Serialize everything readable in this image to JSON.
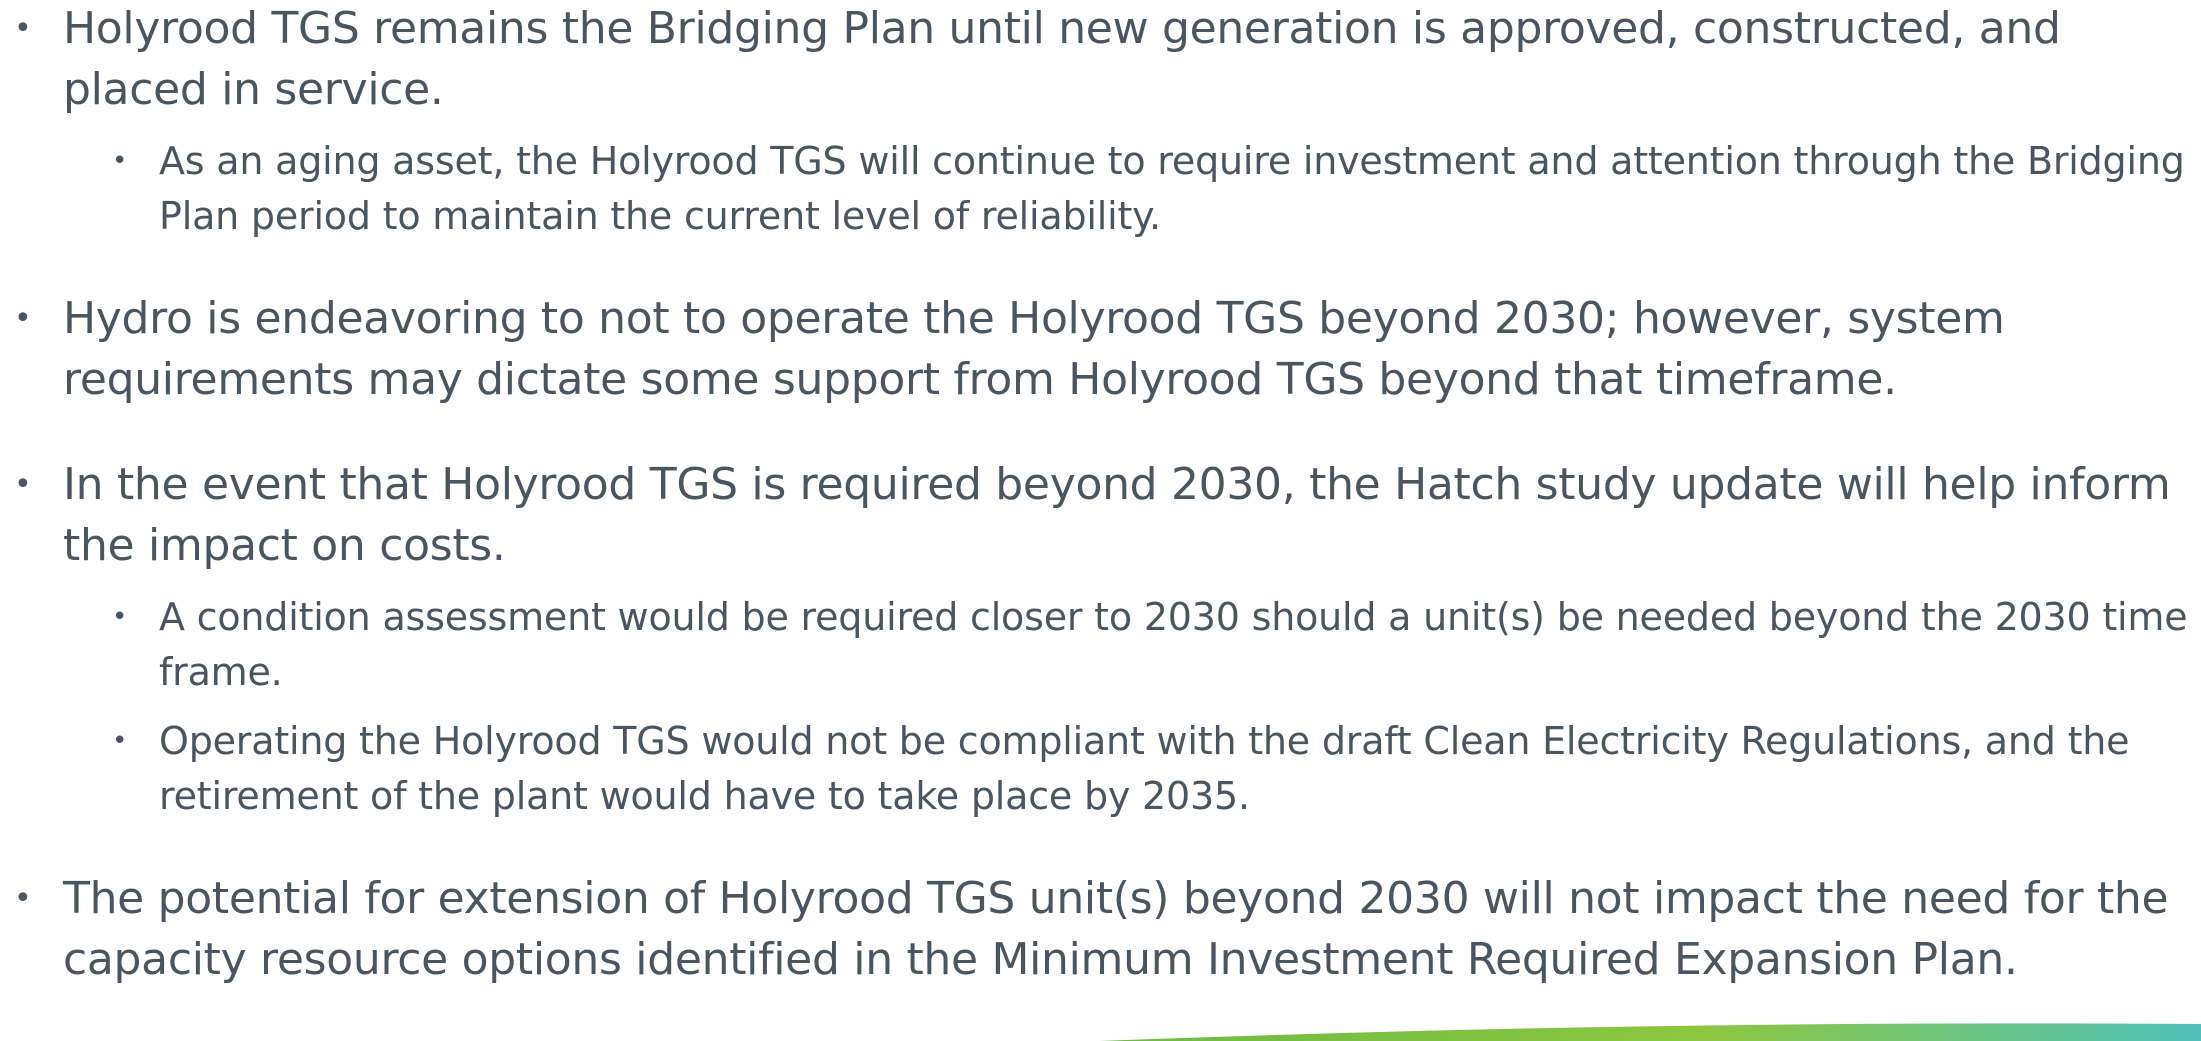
{
  "items": [
    {
      "text": "Holyrood TGS remains the Bridging Plan until new generation is approved, constructed, and placed in service.",
      "subitems": [
        "As an aging asset, the Holyrood TGS will continue to require investment and attention through the Bridging Plan period to maintain the current level of reliability."
      ]
    },
    {
      "text": "Hydro is endeavoring to not to operate the Holyrood TGS beyond 2030; however, system requirements may dictate some support from Holyrood TGS beyond that timeframe.",
      "subitems": []
    },
    {
      "text": "In the event that Holyrood TGS is required beyond 2030, the Hatch study update will help inform the impact on costs.",
      "subitems": [
        "A condition assessment would be required closer to 2030 should a unit(s) be needed beyond the 2030 time frame.",
        "Operating the Holyrood TGS would not be compliant with the draft Clean Electricity Regulations, and the retirement of the plant would have to take place by 2035."
      ]
    },
    {
      "text": "The potential for extension of Holyrood TGS unit(s) beyond 2030 will not impact the need for the capacity resource options identified in the Minimum Investment Required Expansion Plan.",
      "subitems": []
    }
  ]
}
